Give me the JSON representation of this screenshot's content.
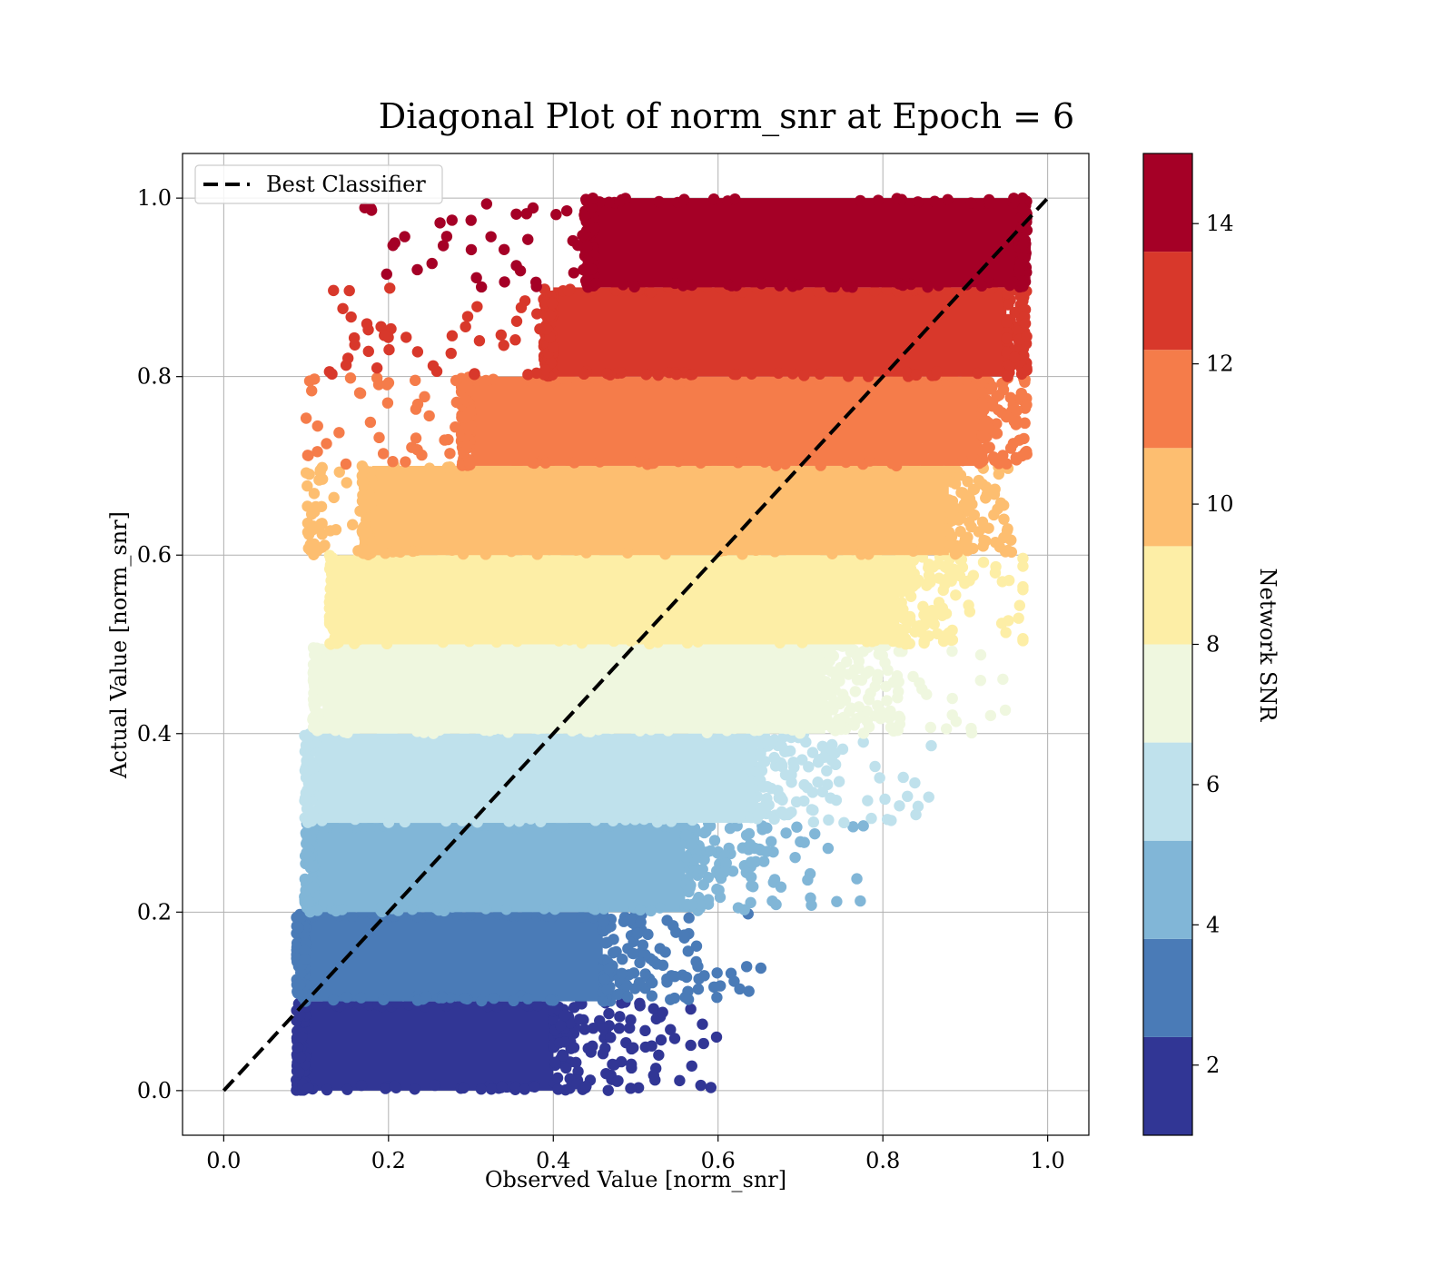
{
  "chart_data": {
    "type": "scatter",
    "title": "Diagonal Plot of norm_snr at Epoch = 6",
    "xlabel": "Observed Value [norm_snr]",
    "ylabel": "Actual Value [norm_snr]",
    "xlim": [
      -0.05,
      1.05
    ],
    "ylim": [
      -0.05,
      1.05
    ],
    "grid": true,
    "x_ticks": [
      0.0,
      0.2,
      0.4,
      0.6,
      0.8,
      1.0
    ],
    "y_ticks": [
      0.0,
      0.2,
      0.4,
      0.6,
      0.8,
      1.0
    ],
    "x_tick_labels": [
      "0.0",
      "0.2",
      "0.4",
      "0.6",
      "0.8",
      "1.0"
    ],
    "y_tick_labels": [
      "0.0",
      "0.2",
      "0.4",
      "0.6",
      "0.8",
      "1.0"
    ],
    "legend": {
      "placement": "top-left",
      "entries": [
        "Best Classifier"
      ]
    },
    "reference_line": {
      "name": "Best Classifier",
      "x": [
        0.0,
        1.0
      ],
      "y": [
        0.0,
        1.0
      ],
      "style": "dashed",
      "color": "#000000"
    },
    "colorbar": {
      "label": "Network SNR",
      "range": [
        1,
        15
      ],
      "ticks": [
        2,
        4,
        6,
        8,
        10,
        12,
        14
      ],
      "tick_labels": [
        "2",
        "4",
        "6",
        "8",
        "10",
        "12",
        "14"
      ],
      "bins": [
        {
          "snr_min": 1.0,
          "snr_max": 2.4,
          "color": "#313695"
        },
        {
          "snr_min": 2.4,
          "snr_max": 3.8,
          "color": "#4a7bb7"
        },
        {
          "snr_min": 3.8,
          "snr_max": 5.2,
          "color": "#81b6d7"
        },
        {
          "snr_min": 5.2,
          "snr_max": 6.6,
          "color": "#bfe1ec"
        },
        {
          "snr_min": 6.6,
          "snr_max": 8.0,
          "color": "#eff7df"
        },
        {
          "snr_min": 8.0,
          "snr_max": 9.4,
          "color": "#fdeea6"
        },
        {
          "snr_min": 9.4,
          "snr_max": 10.8,
          "color": "#fdbe70"
        },
        {
          "snr_min": 10.8,
          "snr_max": 12.2,
          "color": "#f57c4a"
        },
        {
          "snr_min": 12.2,
          "snr_max": 13.6,
          "color": "#d8382b"
        },
        {
          "snr_min": 13.6,
          "snr_max": 15.0,
          "color": "#a50026"
        }
      ]
    },
    "series": [
      {
        "name": "bin 1",
        "actual_range": [
          0.0,
          0.1
        ],
        "observed_core": [
          0.1,
          0.4
        ],
        "color": "#313695"
      },
      {
        "name": "bin 2",
        "actual_range": [
          0.1,
          0.2
        ],
        "observed_core": [
          0.1,
          0.46
        ],
        "color": "#4a7bb7"
      },
      {
        "name": "bin 3",
        "actual_range": [
          0.2,
          0.3
        ],
        "observed_core": [
          0.11,
          0.56
        ],
        "color": "#81b6d7"
      },
      {
        "name": "bin 4",
        "actual_range": [
          0.3,
          0.4
        ],
        "observed_core": [
          0.11,
          0.64
        ],
        "color": "#bfe1ec"
      },
      {
        "name": "bin 5",
        "actual_range": [
          0.4,
          0.5
        ],
        "observed_core": [
          0.12,
          0.73
        ],
        "color": "#eff7df"
      },
      {
        "name": "bin 6",
        "actual_range": [
          0.5,
          0.6
        ],
        "observed_core": [
          0.14,
          0.82
        ],
        "color": "#fdeea6"
      },
      {
        "name": "bin 7",
        "actual_range": [
          0.6,
          0.7
        ],
        "observed_core": [
          0.18,
          0.88
        ],
        "color": "#fdbe70"
      },
      {
        "name": "bin 8",
        "actual_range": [
          0.7,
          0.8
        ],
        "observed_core": [
          0.3,
          0.92
        ],
        "color": "#f57c4a"
      },
      {
        "name": "bin 9",
        "actual_range": [
          0.8,
          0.9
        ],
        "observed_core": [
          0.4,
          0.95
        ],
        "color": "#d8382b"
      },
      {
        "name": "bin 10",
        "actual_range": [
          0.9,
          1.0
        ],
        "observed_core": [
          0.45,
          0.97
        ],
        "color": "#a50026"
      }
    ]
  }
}
